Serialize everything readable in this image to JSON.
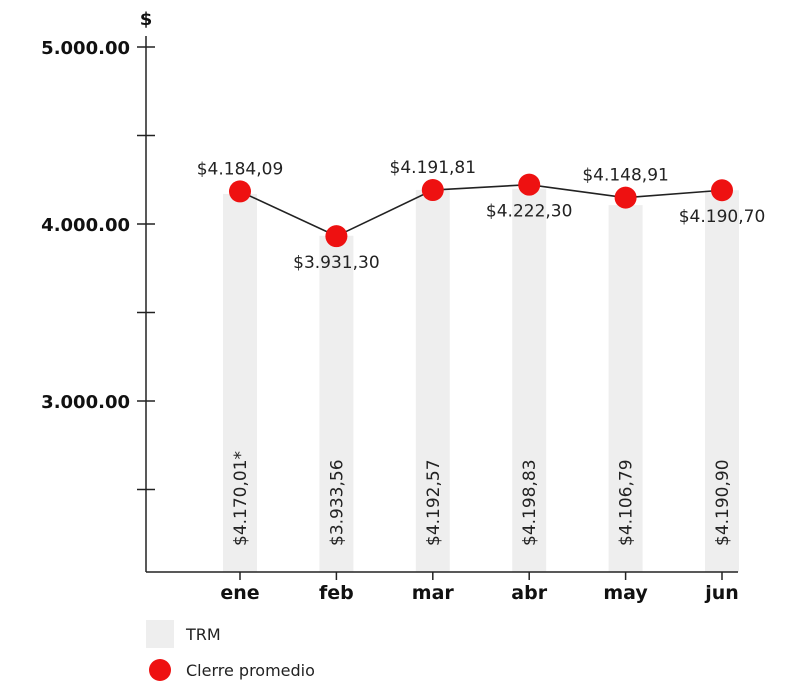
{
  "chart_data": {
    "type": "bar",
    "unit": "$",
    "categories": [
      "ene",
      "feb",
      "mar",
      "abr",
      "may",
      "jun"
    ],
    "ylim": [
      2000,
      5000
    ],
    "y_ticks": [
      5000,
      4000,
      3000
    ],
    "y_tick_labels": [
      "5.000.00",
      "4.000.00",
      "3.000.00"
    ],
    "y_minor_ticks": [
      4500,
      3500,
      2500
    ],
    "grid": false,
    "legend_position": "bottom-left",
    "series": [
      {
        "name": "TRM",
        "kind": "bar",
        "color": "#eeeeee",
        "values": [
          4170.01,
          3933.56,
          4192.57,
          4198.83,
          4106.79,
          4190.9
        ],
        "labels": [
          "$4.170,01*",
          "$3.933,56",
          "$4.192,57",
          "$4.198,83",
          "$4.106,79",
          "$4.190,90"
        ]
      },
      {
        "name": "Clerre promedio",
        "kind": "line",
        "color": "#ee1111",
        "line_color": "#222222",
        "values": [
          4184.09,
          3931.3,
          4191.81,
          4222.3,
          4148.91,
          4190.7
        ],
        "labels": [
          "$4.184,09",
          "$3.931,30",
          "$4.191,81",
          "$4.222,30",
          "$4.148,91",
          "$4.190,70"
        ],
        "label_positions": [
          "above",
          "below",
          "above",
          "below",
          "above",
          "below"
        ]
      }
    ]
  }
}
